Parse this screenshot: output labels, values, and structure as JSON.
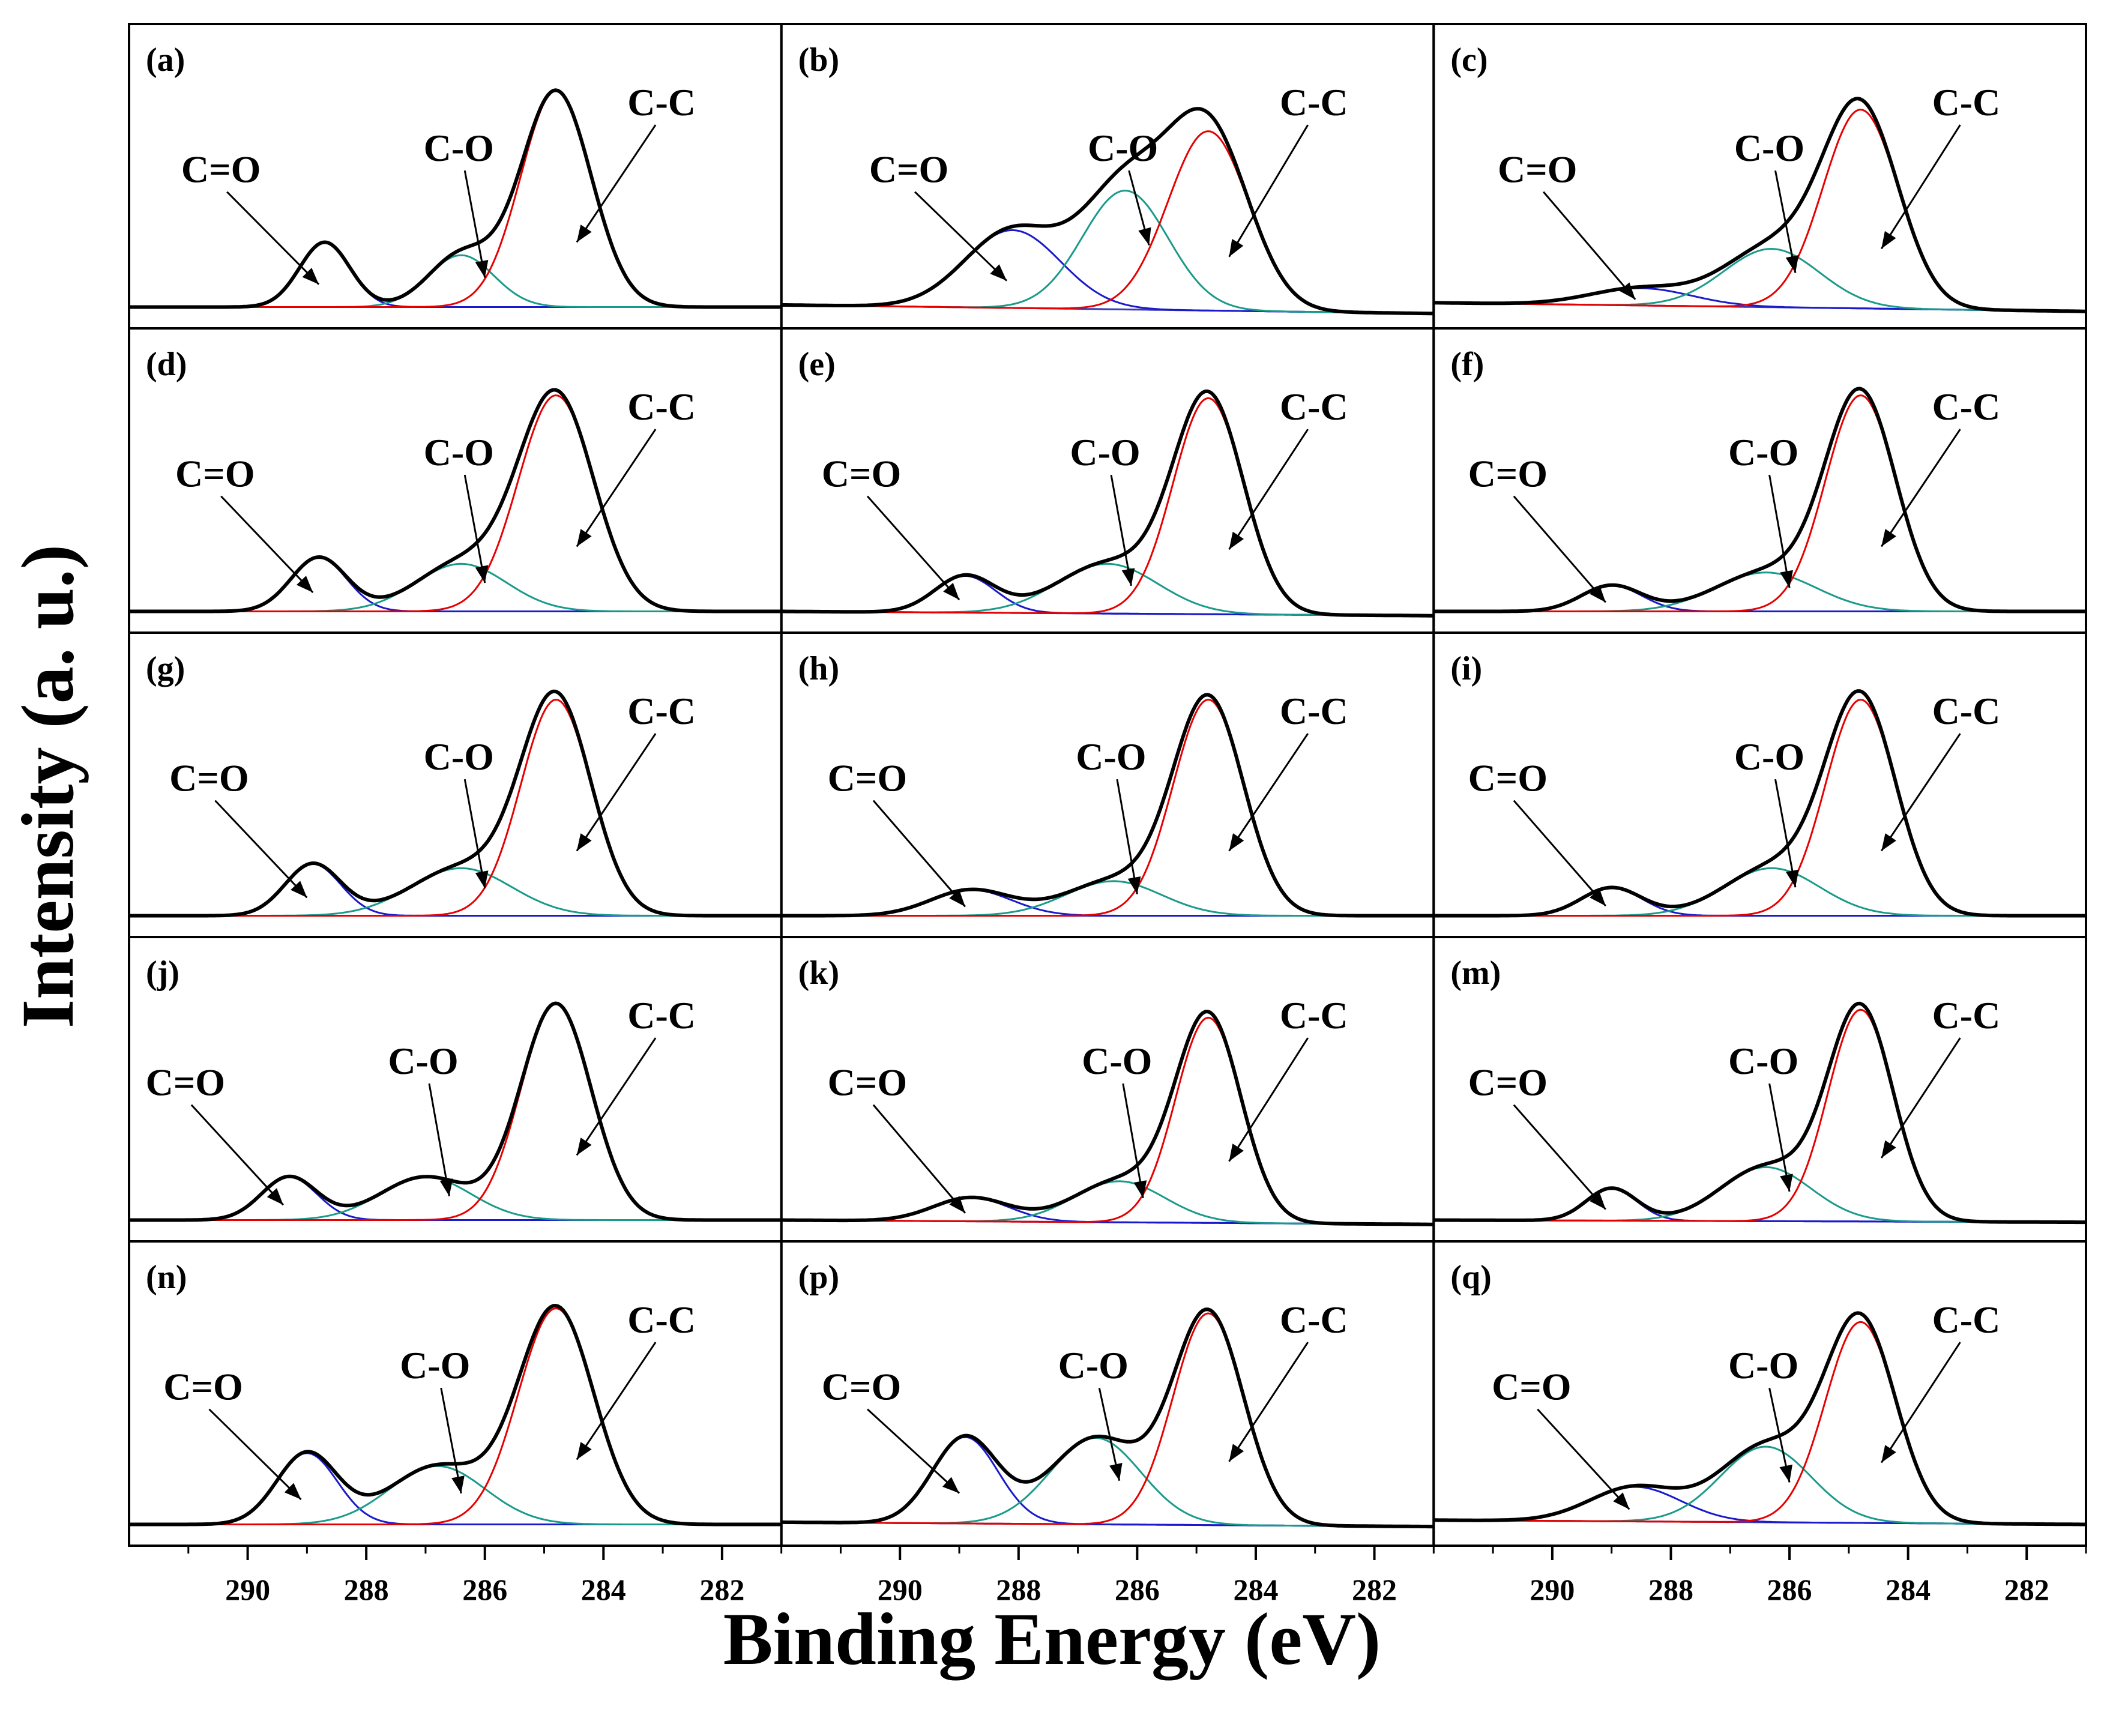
{
  "figure": {
    "ylabel": "Intensity (a. u.)",
    "xlabel": "Binding Energy (eV)",
    "colors": {
      "total": "#000000",
      "cc": "#e60000",
      "co": "#1a9a8a",
      "cdo": "#1a1acc",
      "baseline": "#3a3ab8"
    }
  },
  "chart_data": {
    "type": "line",
    "title": "",
    "xlabel": "Binding Energy (eV)",
    "ylabel": "Intensity (a. u.)",
    "xlim": [
      292,
      281
    ],
    "x_reversed": true,
    "x_ticks": [
      290,
      288,
      286,
      284,
      282
    ],
    "x_tick_labels": [
      "290",
      "288",
      "286",
      "284",
      "282"
    ],
    "series_names": [
      "C-C",
      "C-O",
      "C=O"
    ],
    "peak_labels": {
      "cc": "C-C",
      "co": "C-O",
      "cdo": "C=O"
    },
    "panels": [
      {
        "label": "(a)",
        "cc": {
          "center": 284.8,
          "height": 1.0,
          "fwhm": 1.4
        },
        "co": {
          "center": 286.4,
          "height": 0.24,
          "fwhm": 1.3
        },
        "cdo": {
          "center": 288.7,
          "height": 0.3,
          "fwhm": 1.0
        },
        "baseline": [
          0.0,
          0.0
        ]
      },
      {
        "label": "(b)",
        "cc": {
          "center": 284.8,
          "height": 0.83,
          "fwhm": 1.6
        },
        "co": {
          "center": 286.2,
          "height": 0.55,
          "fwhm": 1.7
        },
        "cdo": {
          "center": 288.1,
          "height": 0.36,
          "fwhm": 1.9
        },
        "baseline": [
          0.01,
          -0.03
        ]
      },
      {
        "label": "(c)",
        "cc": {
          "center": 284.8,
          "height": 0.92,
          "fwhm": 1.5
        },
        "co": {
          "center": 286.3,
          "height": 0.27,
          "fwhm": 1.9
        },
        "cdo": {
          "center": 288.5,
          "height": 0.08,
          "fwhm": 2.0
        },
        "baseline": [
          0.02,
          -0.02
        ]
      },
      {
        "label": "(d)",
        "cc": {
          "center": 284.8,
          "height": 1.0,
          "fwhm": 1.5
        },
        "co": {
          "center": 286.4,
          "height": 0.22,
          "fwhm": 1.8
        },
        "cdo": {
          "center": 288.8,
          "height": 0.25,
          "fwhm": 1.1
        },
        "baseline": [
          0.0,
          0.0
        ]
      },
      {
        "label": "(e)",
        "cc": {
          "center": 284.8,
          "height": 1.0,
          "fwhm": 1.4
        },
        "co": {
          "center": 286.5,
          "height": 0.23,
          "fwhm": 2.0
        },
        "cdo": {
          "center": 288.9,
          "height": 0.17,
          "fwhm": 1.2
        },
        "baseline": [
          0.0,
          -0.02
        ]
      },
      {
        "label": "(f)",
        "cc": {
          "center": 284.8,
          "height": 1.0,
          "fwhm": 1.4
        },
        "co": {
          "center": 286.4,
          "height": 0.18,
          "fwhm": 2.0
        },
        "cdo": {
          "center": 289.0,
          "height": 0.12,
          "fwhm": 1.2
        },
        "baseline": [
          0.0,
          0.0
        ]
      },
      {
        "label": "(g)",
        "cc": {
          "center": 284.8,
          "height": 1.0,
          "fwhm": 1.4
        },
        "co": {
          "center": 286.4,
          "height": 0.22,
          "fwhm": 2.0
        },
        "cdo": {
          "center": 288.9,
          "height": 0.24,
          "fwhm": 1.1
        },
        "baseline": [
          0.0,
          0.0
        ]
      },
      {
        "label": "(h)",
        "cc": {
          "center": 284.8,
          "height": 1.0,
          "fwhm": 1.4
        },
        "co": {
          "center": 286.4,
          "height": 0.16,
          "fwhm": 1.9
        },
        "cdo": {
          "center": 288.8,
          "height": 0.12,
          "fwhm": 1.6
        },
        "baseline": [
          0.0,
          0.0
        ]
      },
      {
        "label": "(i)",
        "cc": {
          "center": 284.8,
          "height": 1.0,
          "fwhm": 1.4
        },
        "co": {
          "center": 286.3,
          "height": 0.22,
          "fwhm": 1.9
        },
        "cdo": {
          "center": 289.0,
          "height": 0.13,
          "fwhm": 1.2
        },
        "baseline": [
          0.0,
          0.0
        ]
      },
      {
        "label": "(j)",
        "cc": {
          "center": 284.8,
          "height": 1.0,
          "fwhm": 1.4
        },
        "co": {
          "center": 287.0,
          "height": 0.2,
          "fwhm": 1.8
        },
        "cdo": {
          "center": 289.3,
          "height": 0.2,
          "fwhm": 1.1
        },
        "baseline": [
          0.0,
          0.0
        ]
      },
      {
        "label": "(k)",
        "cc": {
          "center": 284.8,
          "height": 0.95,
          "fwhm": 1.3
        },
        "co": {
          "center": 286.3,
          "height": 0.19,
          "fwhm": 1.8
        },
        "cdo": {
          "center": 288.8,
          "height": 0.11,
          "fwhm": 1.5
        },
        "baseline": [
          0.0,
          -0.02
        ]
      },
      {
        "label": "(m)",
        "cc": {
          "center": 284.8,
          "height": 0.98,
          "fwhm": 1.3
        },
        "co": {
          "center": 286.4,
          "height": 0.25,
          "fwhm": 1.8
        },
        "cdo": {
          "center": 289.0,
          "height": 0.15,
          "fwhm": 1.0
        },
        "baseline": [
          0.0,
          -0.01
        ]
      },
      {
        "label": "(n)",
        "cc": {
          "center": 284.8,
          "height": 1.0,
          "fwhm": 1.5
        },
        "co": {
          "center": 286.8,
          "height": 0.27,
          "fwhm": 1.9
        },
        "cdo": {
          "center": 289.0,
          "height": 0.33,
          "fwhm": 1.2
        },
        "baseline": [
          0.0,
          0.0
        ]
      },
      {
        "label": "(p)",
        "cc": {
          "center": 284.8,
          "height": 0.98,
          "fwhm": 1.4
        },
        "co": {
          "center": 286.7,
          "height": 0.4,
          "fwhm": 1.8
        },
        "cdo": {
          "center": 288.9,
          "height": 0.4,
          "fwhm": 1.3
        },
        "baseline": [
          0.01,
          -0.01
        ]
      },
      {
        "label": "(q)",
        "cc": {
          "center": 284.8,
          "height": 0.93,
          "fwhm": 1.4
        },
        "co": {
          "center": 286.4,
          "height": 0.35,
          "fwhm": 1.8
        },
        "cdo": {
          "center": 288.6,
          "height": 0.16,
          "fwhm": 1.8
        },
        "baseline": [
          0.02,
          0.0
        ]
      }
    ]
  }
}
